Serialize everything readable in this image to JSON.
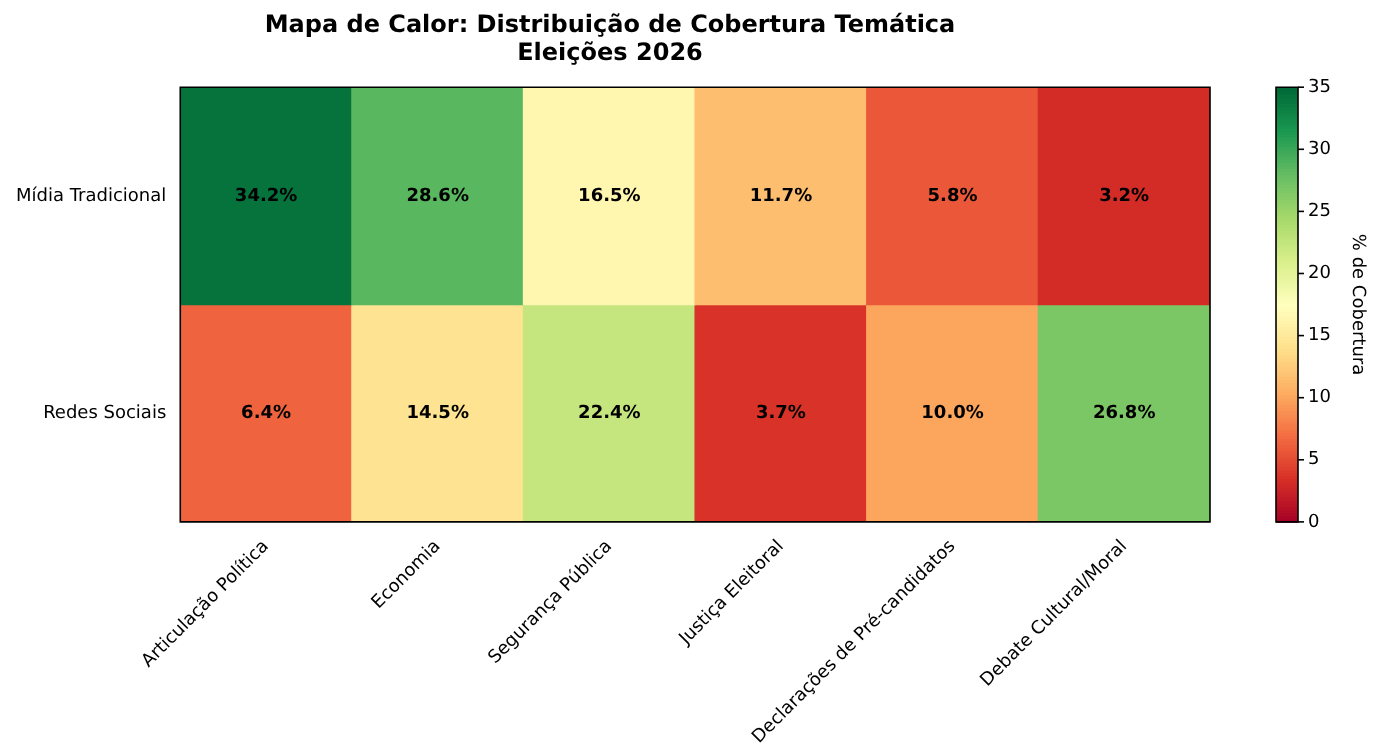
{
  "chart_data": {
    "type": "heatmap",
    "title": "Mapa de Calor: Distribuição de Cobertura Temática\nEleições 2026",
    "categories": [
      "Articulação Política",
      "Economia",
      "Segurança Pública",
      "Justiça Eleitoral",
      "Declarações de Pré-candidatos",
      "Debate Cultural/Moral"
    ],
    "y_categories": [
      "Mídia Tradicional",
      "Redes Sociais"
    ],
    "cells": [
      [
        34.2,
        28.6,
        16.5,
        11.7,
        5.8,
        3.2
      ],
      [
        6.4,
        14.5,
        22.4,
        3.7,
        10.0,
        26.8
      ]
    ],
    "cell_labels": [
      [
        "34.2%",
        "28.6%",
        "16.5%",
        "11.7%",
        "5.8%",
        "3.2%"
      ],
      [
        "6.4%",
        "14.5%",
        "22.4%",
        "3.7%",
        "10.0%",
        "26.8%"
      ]
    ],
    "clim": [
      0,
      35
    ],
    "cticks": [
      0,
      5,
      10,
      15,
      20,
      25,
      30,
      35
    ],
    "clabel": "% de Cobertura"
  }
}
